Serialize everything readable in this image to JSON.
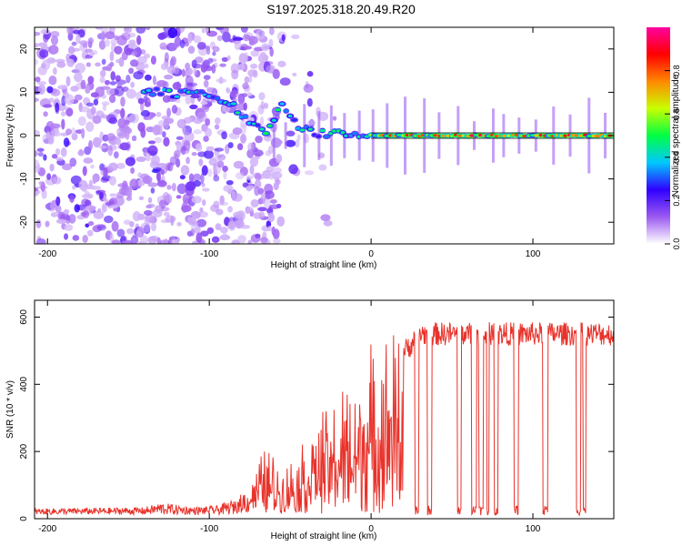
{
  "title": "S197.2025.318.20.49.R20",
  "chart_data": [
    {
      "type": "heatmap",
      "name": "spectrogram",
      "xlabel": "Height of straight line (km)",
      "ylabel": "Frequency (Hz)",
      "xlim": [
        -208,
        150
      ],
      "ylim": [
        -25,
        25
      ],
      "xticks": [
        -200,
        -100,
        0,
        100
      ],
      "yticks": [
        20,
        10,
        0,
        -10,
        -20
      ],
      "xtick_labels": [
        "-200",
        "-100",
        "0",
        "100"
      ],
      "ytick_labels": [
        "20",
        "10",
        "0",
        "-10",
        "-20"
      ],
      "ridge_points": [
        {
          "x": -140,
          "y": 10
        },
        {
          "x": -130,
          "y": 10
        },
        {
          "x": -120,
          "y": 9.5
        },
        {
          "x": -105,
          "y": 10
        },
        {
          "x": -95,
          "y": 9
        },
        {
          "x": -85,
          "y": 7
        },
        {
          "x": -75,
          "y": 3
        },
        {
          "x": -65,
          "y": 1
        },
        {
          "x": -55,
          "y": 7
        },
        {
          "x": -45,
          "y": 2
        },
        {
          "x": -35,
          "y": 0.5
        },
        {
          "x": -20,
          "y": 0.5
        },
        {
          "x": 0,
          "y": 0
        },
        {
          "x": 50,
          "y": 0
        },
        {
          "x": 100,
          "y": 0
        },
        {
          "x": 150,
          "y": 0
        }
      ],
      "colorbar": {
        "label": "Normalized spectral amplitude",
        "range": [
          0,
          1
        ],
        "ticks": [
          0.0,
          0.2,
          0.4,
          0.6,
          0.8
        ],
        "tick_labels": [
          "0.0",
          "0.2",
          "0.4",
          "0.6",
          "0.8"
        ],
        "colors": [
          "#ffffff",
          "#9b59f0",
          "#3000ff",
          "#00c8ff",
          "#00ff44",
          "#c8ff00",
          "#ff8800",
          "#ff0000",
          "#ff00a0"
        ]
      }
    },
    {
      "type": "line",
      "name": "snr",
      "xlabel": "Height of straight line (km)",
      "ylabel": "SNR (10 * v/v)",
      "xlim": [
        -208,
        150
      ],
      "ylim": [
        0,
        650
      ],
      "xticks": [
        -200,
        -100,
        0,
        100
      ],
      "yticks": [
        0,
        200,
        400,
        600
      ],
      "xtick_labels": [
        "-200",
        "-100",
        "0",
        "100"
      ],
      "ytick_labels": [
        "0",
        "200",
        "400",
        "600"
      ],
      "series": [
        {
          "name": "SNR",
          "color": "#e8322a",
          "envelope": [
            {
              "x": -208,
              "y": 20
            },
            {
              "x": -140,
              "y": 25
            },
            {
              "x": -130,
              "y": 40
            },
            {
              "x": -110,
              "y": 25
            },
            {
              "x": -95,
              "y": 30
            },
            {
              "x": -85,
              "y": 50
            },
            {
              "x": -75,
              "y": 90
            },
            {
              "x": -65,
              "y": 200
            },
            {
              "x": -55,
              "y": 120
            },
            {
              "x": -45,
              "y": 180
            },
            {
              "x": -35,
              "y": 260
            },
            {
              "x": -25,
              "y": 300
            },
            {
              "x": -15,
              "y": 350
            },
            {
              "x": -5,
              "y": 420
            },
            {
              "x": 5,
              "y": 470
            },
            {
              "x": 15,
              "y": 510
            },
            {
              "x": 25,
              "y": 560
            },
            {
              "x": 30,
              "y": 590
            },
            {
              "x": 150,
              "y": 590
            }
          ]
        }
      ]
    }
  ]
}
